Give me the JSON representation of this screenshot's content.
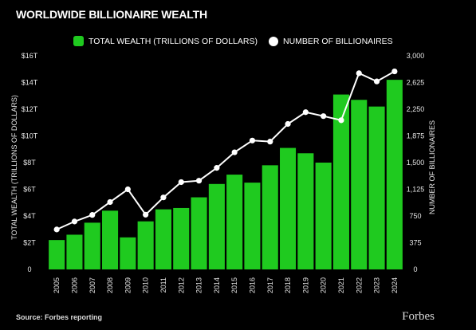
{
  "title": "WORLDWIDE BILLIONAIRE WEALTH",
  "source": "Source: Forbes reporting",
  "brand": "Forbes",
  "colors": {
    "bar": "#1fca1f",
    "line": "#ffffff",
    "background": "#000000"
  },
  "chart_data": {
    "type": "bar",
    "title": "WORLDWIDE BILLIONAIRE WEALTH",
    "categories": [
      "2005",
      "2006",
      "2007",
      "2008",
      "2009",
      "2010",
      "2011",
      "2012",
      "2013",
      "2014",
      "2015",
      "2016",
      "2017",
      "2018",
      "2019",
      "2020",
      "2021",
      "2022",
      "2023",
      "2024"
    ],
    "series": [
      {
        "name": "TOTAL WEALTH (TRILLIONS OF DOLLARS)",
        "type": "bar",
        "axis": "left",
        "values": [
          2.2,
          2.6,
          3.5,
          4.4,
          2.4,
          3.6,
          4.5,
          4.6,
          5.4,
          6.4,
          7.1,
          6.5,
          7.8,
          9.1,
          8.7,
          8.0,
          13.1,
          12.7,
          12.2,
          14.2
        ]
      },
      {
        "name": "NUMBER OF BILLIONAIRES",
        "type": "line",
        "axis": "right",
        "values": [
          561,
          673,
          765,
          946,
          1125,
          769,
          1011,
          1226,
          1246,
          1426,
          1645,
          1810,
          1795,
          2043,
          2208,
          2153,
          2095,
          2755,
          2640,
          2781
        ]
      }
    ],
    "ylabel": "TOTAL WEALTH (TRILLIONS OF DOLLARS)",
    "y2label": "NUMBER OF BILLIONAIRES",
    "ylim": [
      0,
      16
    ],
    "y2lim": [
      0,
      3000
    ],
    "yticks": [
      "0",
      "$2T",
      "$4T",
      "$6T",
      "$8T",
      "$10T",
      "$12T",
      "$14T",
      "$16T"
    ],
    "y2ticks": [
      "0",
      "375",
      "750",
      "1,125",
      "1,500",
      "1,875",
      "2,250",
      "2,625",
      "3,000"
    ],
    "legend": "top",
    "grid": false
  }
}
